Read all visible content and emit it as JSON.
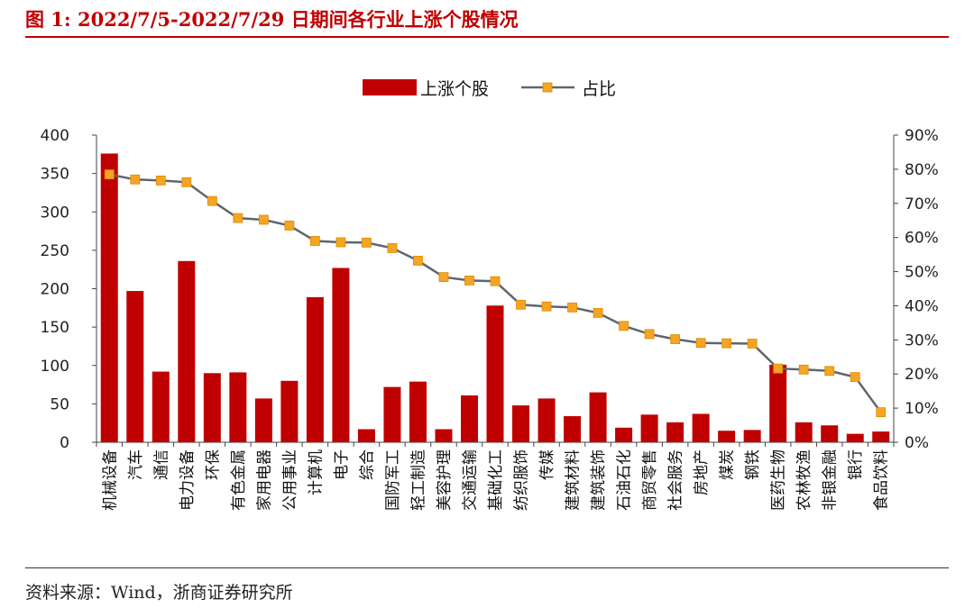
{
  "figure": {
    "title": "图 1: 2022/7/5-2022/7/29 日期间各行业上涨个股情况",
    "source": "资料来源：Wind，浙商证券研究所"
  },
  "chart_data": {
    "type": "bar",
    "title": "",
    "categories": [
      "机械设备",
      "汽车",
      "通信",
      "电力设备",
      "环保",
      "有色金属",
      "家用电器",
      "公用事业",
      "计算机",
      "电子",
      "综合",
      "国防军工",
      "轻工制造",
      "美容护理",
      "交通运输",
      "基础化工",
      "纺织服饰",
      "传媒",
      "建筑材料",
      "建筑装饰",
      "石油石化",
      "商贸零售",
      "社会服务",
      "房地产",
      "煤炭",
      "钢铁",
      "医药生物",
      "农林牧渔",
      "非银金融",
      "银行",
      "食品饮料"
    ],
    "series": [
      {
        "name": "上涨个股",
        "type": "bar",
        "axis": "left",
        "color": "#C00000",
        "values": [
          376,
          197,
          92,
          236,
          90,
          91,
          57,
          80,
          189,
          227,
          17,
          72,
          79,
          17,
          61,
          178,
          48,
          57,
          34,
          65,
          19,
          36,
          26,
          37,
          15,
          16,
          101,
          26,
          22,
          11,
          14
        ]
      },
      {
        "name": "占比",
        "type": "line",
        "axis": "right",
        "color": "#5B6770",
        "marker_color": "#F4A523",
        "values": [
          78.5,
          77,
          76.7,
          76.2,
          70.7,
          65.7,
          65.2,
          63.5,
          59,
          58.6,
          58.5,
          56.9,
          53.2,
          48.4,
          47.4,
          47.2,
          40.3,
          39.8,
          39.5,
          37.9,
          34.1,
          31.7,
          30.2,
          29.1,
          29,
          28.9,
          21.6,
          21.3,
          20.9,
          19.1,
          8.8
        ]
      }
    ],
    "left_axis": {
      "min": 0,
      "max": 400,
      "ticks": [
        0,
        50,
        100,
        150,
        200,
        250,
        300,
        350,
        400
      ]
    },
    "right_axis": {
      "min": 0,
      "max": 90,
      "ticks": [
        "0%",
        "10%",
        "20%",
        "30%",
        "40%",
        "50%",
        "60%",
        "70%",
        "80%",
        "90%"
      ]
    },
    "legend_position": "top-center",
    "grid": false
  }
}
